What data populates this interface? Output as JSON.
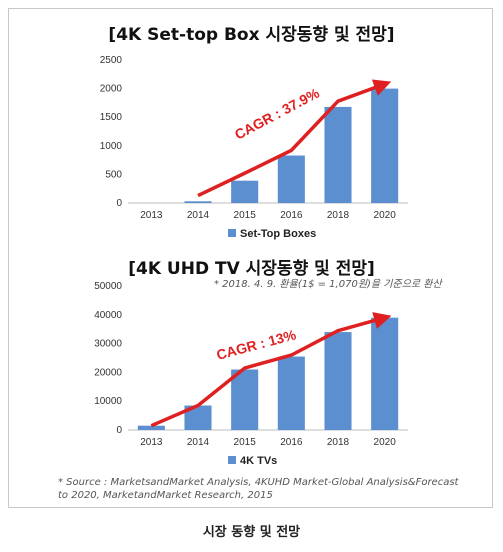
{
  "chart_data": [
    {
      "type": "bar",
      "title": "[4K Set-top Box 시장동향 및 전망]",
      "categories": [
        "2013",
        "2014",
        "2015",
        "2016",
        "2018",
        "2020"
      ],
      "series": [
        {
          "name": "Set-Top Boxes",
          "values": [
            0,
            30,
            390,
            830,
            1680,
            2000
          ]
        }
      ],
      "trend_line": [
        null,
        130,
        520,
        920,
        1780,
        2080
      ],
      "annotation": "CAGR : 37.9%",
      "yticks": [
        "0",
        "500",
        "1000",
        "1500",
        "2000",
        "2500"
      ],
      "ylim": [
        0,
        2500
      ],
      "legend": "bottom-center",
      "bar_color": "#5b8fcf",
      "line_color": "#e02020"
    },
    {
      "type": "bar",
      "title": "[4K UHD TV 시장동향 및 전망]",
      "note": "* 2018. 4. 9. 환율(1$ = 1,070원)을 기준으로 환산",
      "categories": [
        "2013",
        "2014",
        "2015",
        "2016",
        "2018",
        "2020"
      ],
      "series": [
        {
          "name": "4K TVs",
          "values": [
            1500,
            8500,
            21000,
            25500,
            34000,
            39000
          ]
        }
      ],
      "trend_line": [
        1500,
        8500,
        21500,
        26000,
        34500,
        39000
      ],
      "annotation": "CAGR : 13%",
      "yticks": [
        "0",
        "10000",
        "20000",
        "30000",
        "40000",
        "50000"
      ],
      "ylim": [
        0,
        50000
      ],
      "legend": "bottom-center",
      "bar_color": "#5b8fcf",
      "line_color": "#e02020"
    }
  ],
  "source": "* Source : MarketsandMarket Analysis, 4KUHD Market-Global Analysis&Forecast to 2020, MarketandMarket Research, 2015",
  "source_lines": [
    "* Source : MarketsandMarket Analysis, 4KUHD Market-Global Analysis&Forecast",
    "to 2020, MarketandMarket Research, 2015"
  ],
  "caption": "시장 동향 및 전망"
}
